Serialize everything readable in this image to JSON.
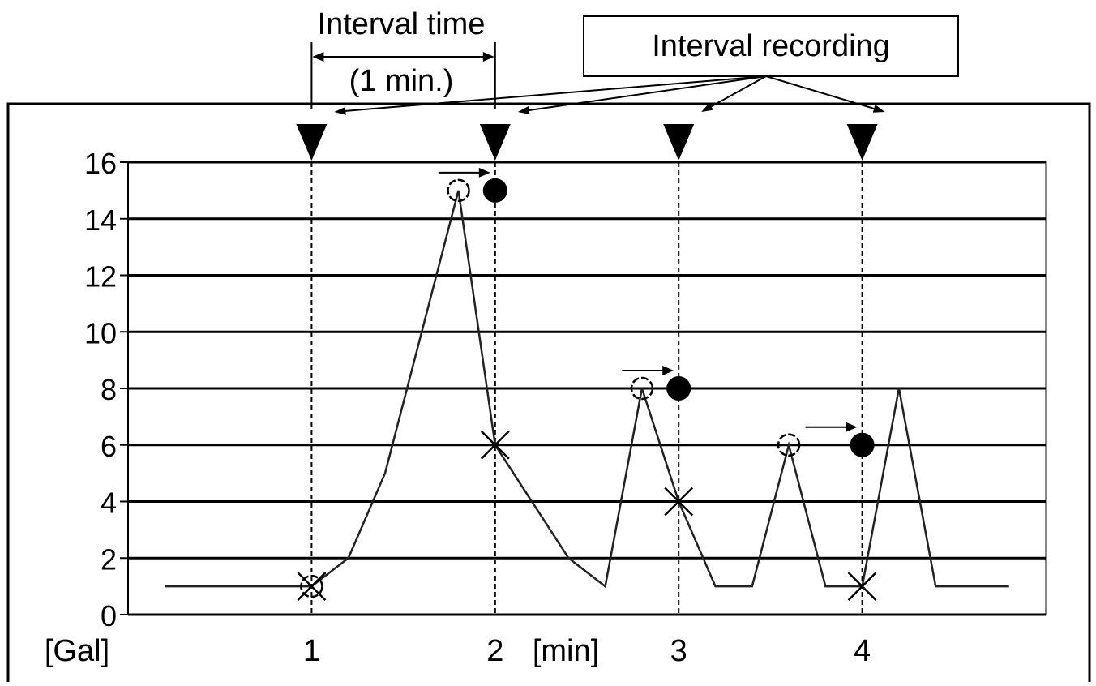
{
  "chart_data": {
    "type": "line",
    "title": "",
    "xlabel": "[min]",
    "ylabel": "[Gal]",
    "ylim": [
      0,
      16
    ],
    "xlim": [
      0,
      5
    ],
    "y_ticks": [
      0,
      2,
      4,
      6,
      8,
      10,
      12,
      14,
      16
    ],
    "x_ticks": [
      1,
      2,
      3,
      4
    ],
    "grid": "horizontal",
    "series": [
      {
        "points": [
          [
            0.2,
            1
          ],
          [
            1,
            1
          ],
          [
            1.2,
            2
          ],
          [
            1.4,
            5
          ],
          [
            1.8,
            15
          ],
          [
            2,
            6
          ],
          [
            2.4,
            2
          ],
          [
            2.6,
            1
          ],
          [
            2.8,
            8
          ],
          [
            3,
            4
          ],
          [
            3.2,
            1
          ],
          [
            3.4,
            1
          ],
          [
            3.6,
            6
          ],
          [
            3.8,
            1
          ],
          [
            4,
            1
          ],
          [
            4.2,
            8
          ],
          [
            4.4,
            1
          ],
          [
            4.8,
            1
          ]
        ]
      }
    ],
    "recording_times": [
      1,
      2,
      3,
      4
    ],
    "interval_peaks": [
      {
        "x": 1,
        "y": 1
      },
      {
        "x": 1.8,
        "y": 15
      },
      {
        "x": 2.8,
        "y": 8
      },
      {
        "x": 3.6,
        "y": 6
      }
    ],
    "recorded_values": [
      {
        "x": 2,
        "y": 15
      },
      {
        "x": 3,
        "y": 8
      },
      {
        "x": 4,
        "y": 6
      }
    ],
    "instantaneous_values": [
      {
        "x": 1,
        "y": 1
      },
      {
        "x": 2,
        "y": 6
      },
      {
        "x": 3,
        "y": 4
      },
      {
        "x": 4,
        "y": 1
      }
    ],
    "annotations": {
      "interval_time": "Interval time",
      "interval_time_value": "(1 min.)",
      "interval_recording": "Interval recording"
    }
  }
}
